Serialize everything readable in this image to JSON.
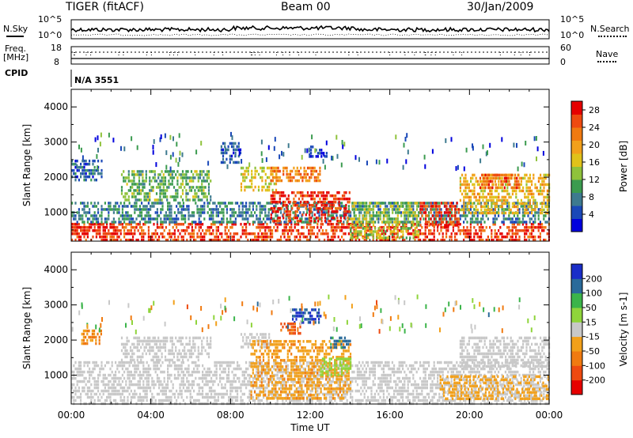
{
  "header": {
    "radar": "TIGER (fitACF)",
    "beam": "Beam 00",
    "date": "30/Jan/2009"
  },
  "summary_panels": {
    "nsky": {
      "label": "N.Sky",
      "tick_top": "10^5",
      "tick_bottom": "10^0",
      "right_label": "N.Search",
      "right_tick_top": "10^5",
      "right_tick_bottom": "10^0"
    },
    "freq": {
      "label_line1": "Freq.",
      "label_line2": "[MHz]",
      "tick_top": "18",
      "tick_bottom": "8",
      "right_label": "Nave",
      "right_tick_top": "60",
      "right_tick_bottom": "0"
    },
    "cpid": {
      "label": "CPID",
      "value": "N/A 3551"
    }
  },
  "chart_data": [
    {
      "type": "heatmap",
      "title": "",
      "xlabel": "Time UT",
      "ylabel": "Slant Range [km]",
      "x_ticks": [
        "00:00",
        "04:00",
        "08:00",
        "12:00",
        "16:00",
        "20:00",
        "00:00"
      ],
      "y_ticks": [
        1000,
        2000,
        3000,
        4000
      ],
      "xlim": [
        0,
        24
      ],
      "ylim": [
        180,
        4500
      ],
      "colorbar": {
        "label": "Power [dB]",
        "ticks": [
          4,
          8,
          12,
          16,
          20,
          24,
          28
        ],
        "range": [
          0,
          30
        ],
        "colors": [
          "#0000dd",
          "#1a48b8",
          "#3d7a8f",
          "#3b9b4f",
          "#8fc23b",
          "#e0c21a",
          "#f2a01a",
          "#f07a10",
          "#ee4a10",
          "#e60000"
        ]
      },
      "regions": [
        {
          "t": [
            0.0,
            24.0
          ],
          "r": [
            180,
            700
          ],
          "level": 26
        },
        {
          "t": [
            0.0,
            2.2
          ],
          "r": [
            350,
            700
          ],
          "level": 28
        },
        {
          "t": [
            0.0,
            24.0
          ],
          "r": [
            700,
            1300
          ],
          "level": 8
        },
        {
          "t": [
            0.0,
            1.5
          ],
          "r": [
            1900,
            2500
          ],
          "level": 6
        },
        {
          "t": [
            2.5,
            7.0
          ],
          "r": [
            1300,
            2200
          ],
          "level": 12
        },
        {
          "t": [
            7.5,
            8.5
          ],
          "r": [
            2400,
            3000
          ],
          "level": 5
        },
        {
          "t": [
            8.5,
            10.3
          ],
          "r": [
            1600,
            2300
          ],
          "level": 16
        },
        {
          "t": [
            10.0,
            14.0
          ],
          "r": [
            700,
            1600
          ],
          "level": 27
        },
        {
          "t": [
            10.0,
            12.5
          ],
          "r": [
            1900,
            2300
          ],
          "level": 22
        },
        {
          "t": [
            12.0,
            12.8
          ],
          "r": [
            2600,
            2900
          ],
          "level": 5
        },
        {
          "t": [
            14.0,
            17.5
          ],
          "r": [
            300,
            1300
          ],
          "level": 14
        },
        {
          "t": [
            17.5,
            19.5
          ],
          "r": [
            600,
            1300
          ],
          "level": 27
        },
        {
          "t": [
            19.5,
            24.0
          ],
          "r": [
            1000,
            2100
          ],
          "level": 18
        },
        {
          "t": [
            20.5,
            22.5
          ],
          "r": [
            1700,
            2100
          ],
          "level": 24
        }
      ]
    },
    {
      "type": "heatmap",
      "title": "",
      "xlabel": "Time UT",
      "ylabel": "Slant Range [km]",
      "x_ticks": [
        "00:00",
        "04:00",
        "08:00",
        "12:00",
        "16:00",
        "20:00",
        "00:00"
      ],
      "y_ticks": [
        1000,
        2000,
        3000,
        4000
      ],
      "xlim": [
        0,
        24
      ],
      "ylim": [
        180,
        4500
      ],
      "colorbar": {
        "label": "Velocity [m s-1]",
        "ticks": [
          200,
          100,
          50,
          15,
          -15,
          -50,
          -100,
          -200
        ],
        "range": [
          -250,
          250
        ],
        "colors": [
          "#e60000",
          "#ee4a10",
          "#f07a10",
          "#f2a01a",
          "#c8c8c8",
          "#8fd43b",
          "#3bb44a",
          "#2a6a9a",
          "#1a2ec8"
        ]
      },
      "regions": [
        {
          "t": [
            0.0,
            24.0
          ],
          "r": [
            200,
            1400
          ],
          "value": 0
        },
        {
          "t": [
            0.5,
            1.5
          ],
          "r": [
            1900,
            2300
          ],
          "value": -80
        },
        {
          "t": [
            2.5,
            7.0
          ],
          "r": [
            1400,
            2100
          ],
          "value": 0
        },
        {
          "t": [
            8.5,
            10.0
          ],
          "r": [
            1800,
            2200
          ],
          "value": 0
        },
        {
          "t": [
            9.0,
            14.0
          ],
          "r": [
            300,
            2000
          ],
          "value": -70
        },
        {
          "t": [
            12.5,
            14.0
          ],
          "r": [
            1000,
            1500
          ],
          "value": 60
        },
        {
          "t": [
            11.0,
            12.5
          ],
          "r": [
            2500,
            2900
          ],
          "value": 200
        },
        {
          "t": [
            10.5,
            11.5
          ],
          "r": [
            2200,
            2500
          ],
          "value": -150
        },
        {
          "t": [
            13.0,
            14.0
          ],
          "r": [
            1800,
            2100
          ],
          "value": 150
        },
        {
          "t": [
            18.5,
            24.0
          ],
          "r": [
            300,
            1000
          ],
          "value": -40
        },
        {
          "t": [
            19.5,
            24.0
          ],
          "r": [
            1200,
            2100
          ],
          "value": 0
        }
      ]
    }
  ],
  "colors": {
    "axis": "#000000",
    "background": "#ffffff"
  }
}
